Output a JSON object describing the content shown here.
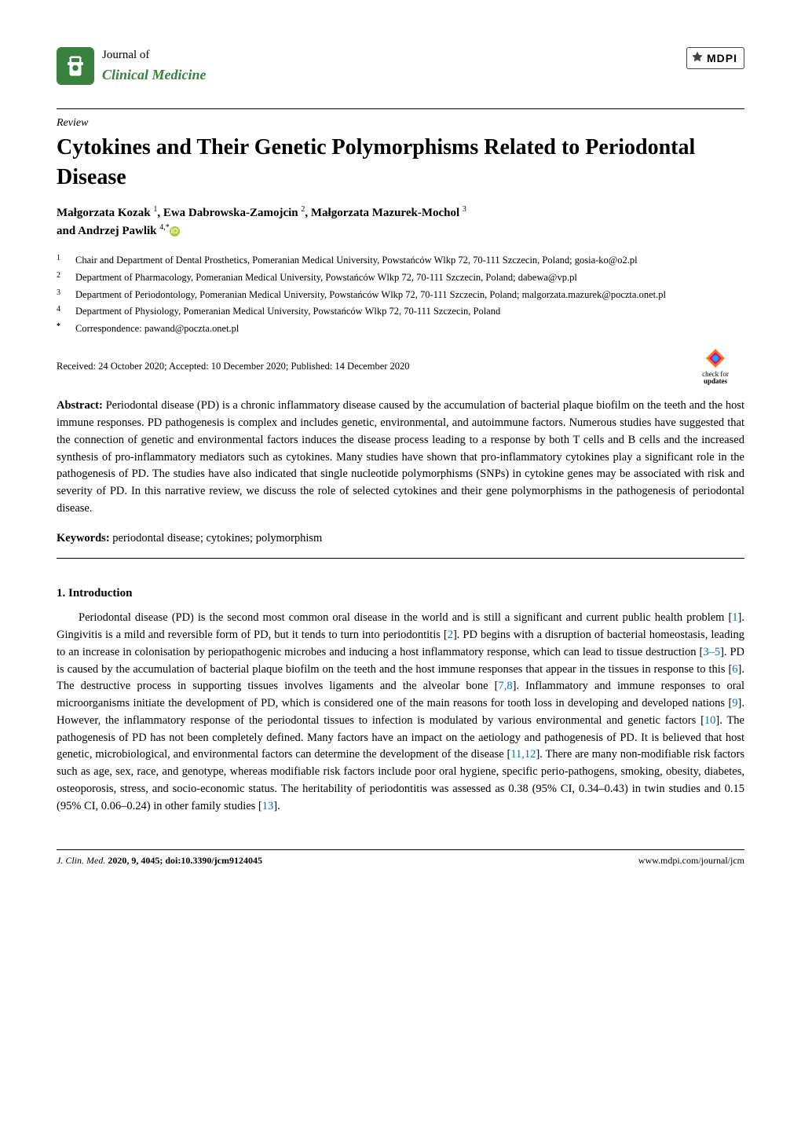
{
  "header": {
    "journal_line1": "Journal of",
    "journal_line2": "Clinical Medicine",
    "publisher": "MDPI"
  },
  "article": {
    "type": "Review",
    "title": "Cytokines and Their Genetic Polymorphisms Related to Periodontal Disease",
    "authors_line1": "Małgorzata Kozak ",
    "authors_sup1": "1",
    "authors_sep1": ", Ewa Dabrowska-Zamojcin ",
    "authors_sup2": "2",
    "authors_sep2": ", Małgorzata Mazurek-Mochol ",
    "authors_sup3": "3",
    "authors_line2": "and Andrzej Pawlik ",
    "authors_sup4": "4,*"
  },
  "affiliations": [
    {
      "num": "1",
      "text": "Chair and Department of Dental Prosthetics, Pomeranian Medical University, Powstańców Wlkp 72, 70-111 Szczecin, Poland; gosia-ko@o2.pl"
    },
    {
      "num": "2",
      "text": "Department of Pharmacology, Pomeranian Medical University, Powstańców Wlkp 72, 70-111 Szczecin, Poland; dabewa@vp.pl"
    },
    {
      "num": "3",
      "text": "Department of Periodontology, Pomeranian Medical University, Powstańców Wlkp 72, 70-111 Szczecin, Poland; malgorzata.mazurek@poczta.onet.pl"
    },
    {
      "num": "4",
      "text": "Department of Physiology, Pomeranian Medical University, Powstańców Wlkp 72, 70-111 Szczecin, Poland"
    },
    {
      "num": "*",
      "text": "Correspondence: pawand@poczta.onet.pl"
    }
  ],
  "dates": "Received: 24 October 2020; Accepted: 10 December 2020; Published: 14 December 2020",
  "check_updates": {
    "line1": "check for",
    "line2": "updates"
  },
  "abstract_label": "Abstract:",
  "abstract_text": " Periodontal disease (PD) is a chronic inflammatory disease caused by the accumulation of bacterial plaque biofilm on the teeth and the host immune responses. PD pathogenesis is complex and includes genetic, environmental, and autoimmune factors. Numerous studies have suggested that the connection of genetic and environmental factors induces the disease process leading to a response by both T cells and B cells and the increased synthesis of pro-inflammatory mediators such as cytokines. Many studies have shown that pro-inflammatory cytokines play a significant role in the pathogenesis of PD. The studies have also indicated that single nucleotide polymorphisms (SNPs) in cytokine genes may be associated with risk and severity of PD. In this narrative review, we discuss the role of selected cytokines and their gene polymorphisms in the pathogenesis of periodontal disease.",
  "keywords_label": "Keywords:",
  "keywords_text": " periodontal disease; cytokines; polymorphism",
  "section1_heading": "1. Introduction",
  "section1_body": "Periodontal disease (PD) is the second most common oral disease in the world and is still a significant and current public health problem [1]. Gingivitis is a mild and reversible form of PD, but it tends to turn into periodontitis [2]. PD begins with a disruption of bacterial homeostasis, leading to an increase in colonisation by periopathogenic microbes and inducing a host inflammatory response, which can lead to tissue destruction [3–5]. PD is caused by the accumulation of bacterial plaque biofilm on the teeth and the host immune responses that appear in the tissues in response to this [6]. The destructive process in supporting tissues involves ligaments and the alveolar bone [7,8]. Inflammatory and immune responses to oral microorganisms initiate the development of PD, which is considered one of the main reasons for tooth loss in developing and developed nations [9]. However, the inflammatory response of the periodontal tissues to infection is modulated by various environmental and genetic factors [10]. The pathogenesis of PD has not been completely defined. Many factors have an impact on the aetiology and pathogenesis of PD. It is believed that host genetic, microbiological, and environmental factors can determine the development of the disease [11,12]. There are many non-modifiable risk factors such as age, sex, race, and genotype, whereas modifiable risk factors include poor oral hygiene, specific perio-pathogens, smoking, obesity, diabetes, osteoporosis, stress, and socio-economic status. The heritability of periodontitis was assessed as 0.38 (95% CI, 0.34–0.43) in twin studies and 0.15 (95% CI, 0.06–0.24) in other family studies [13].",
  "footer": {
    "journal_abbrev": "J. Clin. Med.",
    "year_vol": " 2020, 9, 4045; doi:10.3390/jcm9124045",
    "url": "www.mdpi.com/journal/jcm"
  },
  "colors": {
    "journal_green": "#38813f",
    "orcid_green": "#a6ce39",
    "ref_blue": "#0070c0",
    "check_orange": "#f47920",
    "check_pink": "#ec008c",
    "check_cyan": "#00aeef"
  }
}
